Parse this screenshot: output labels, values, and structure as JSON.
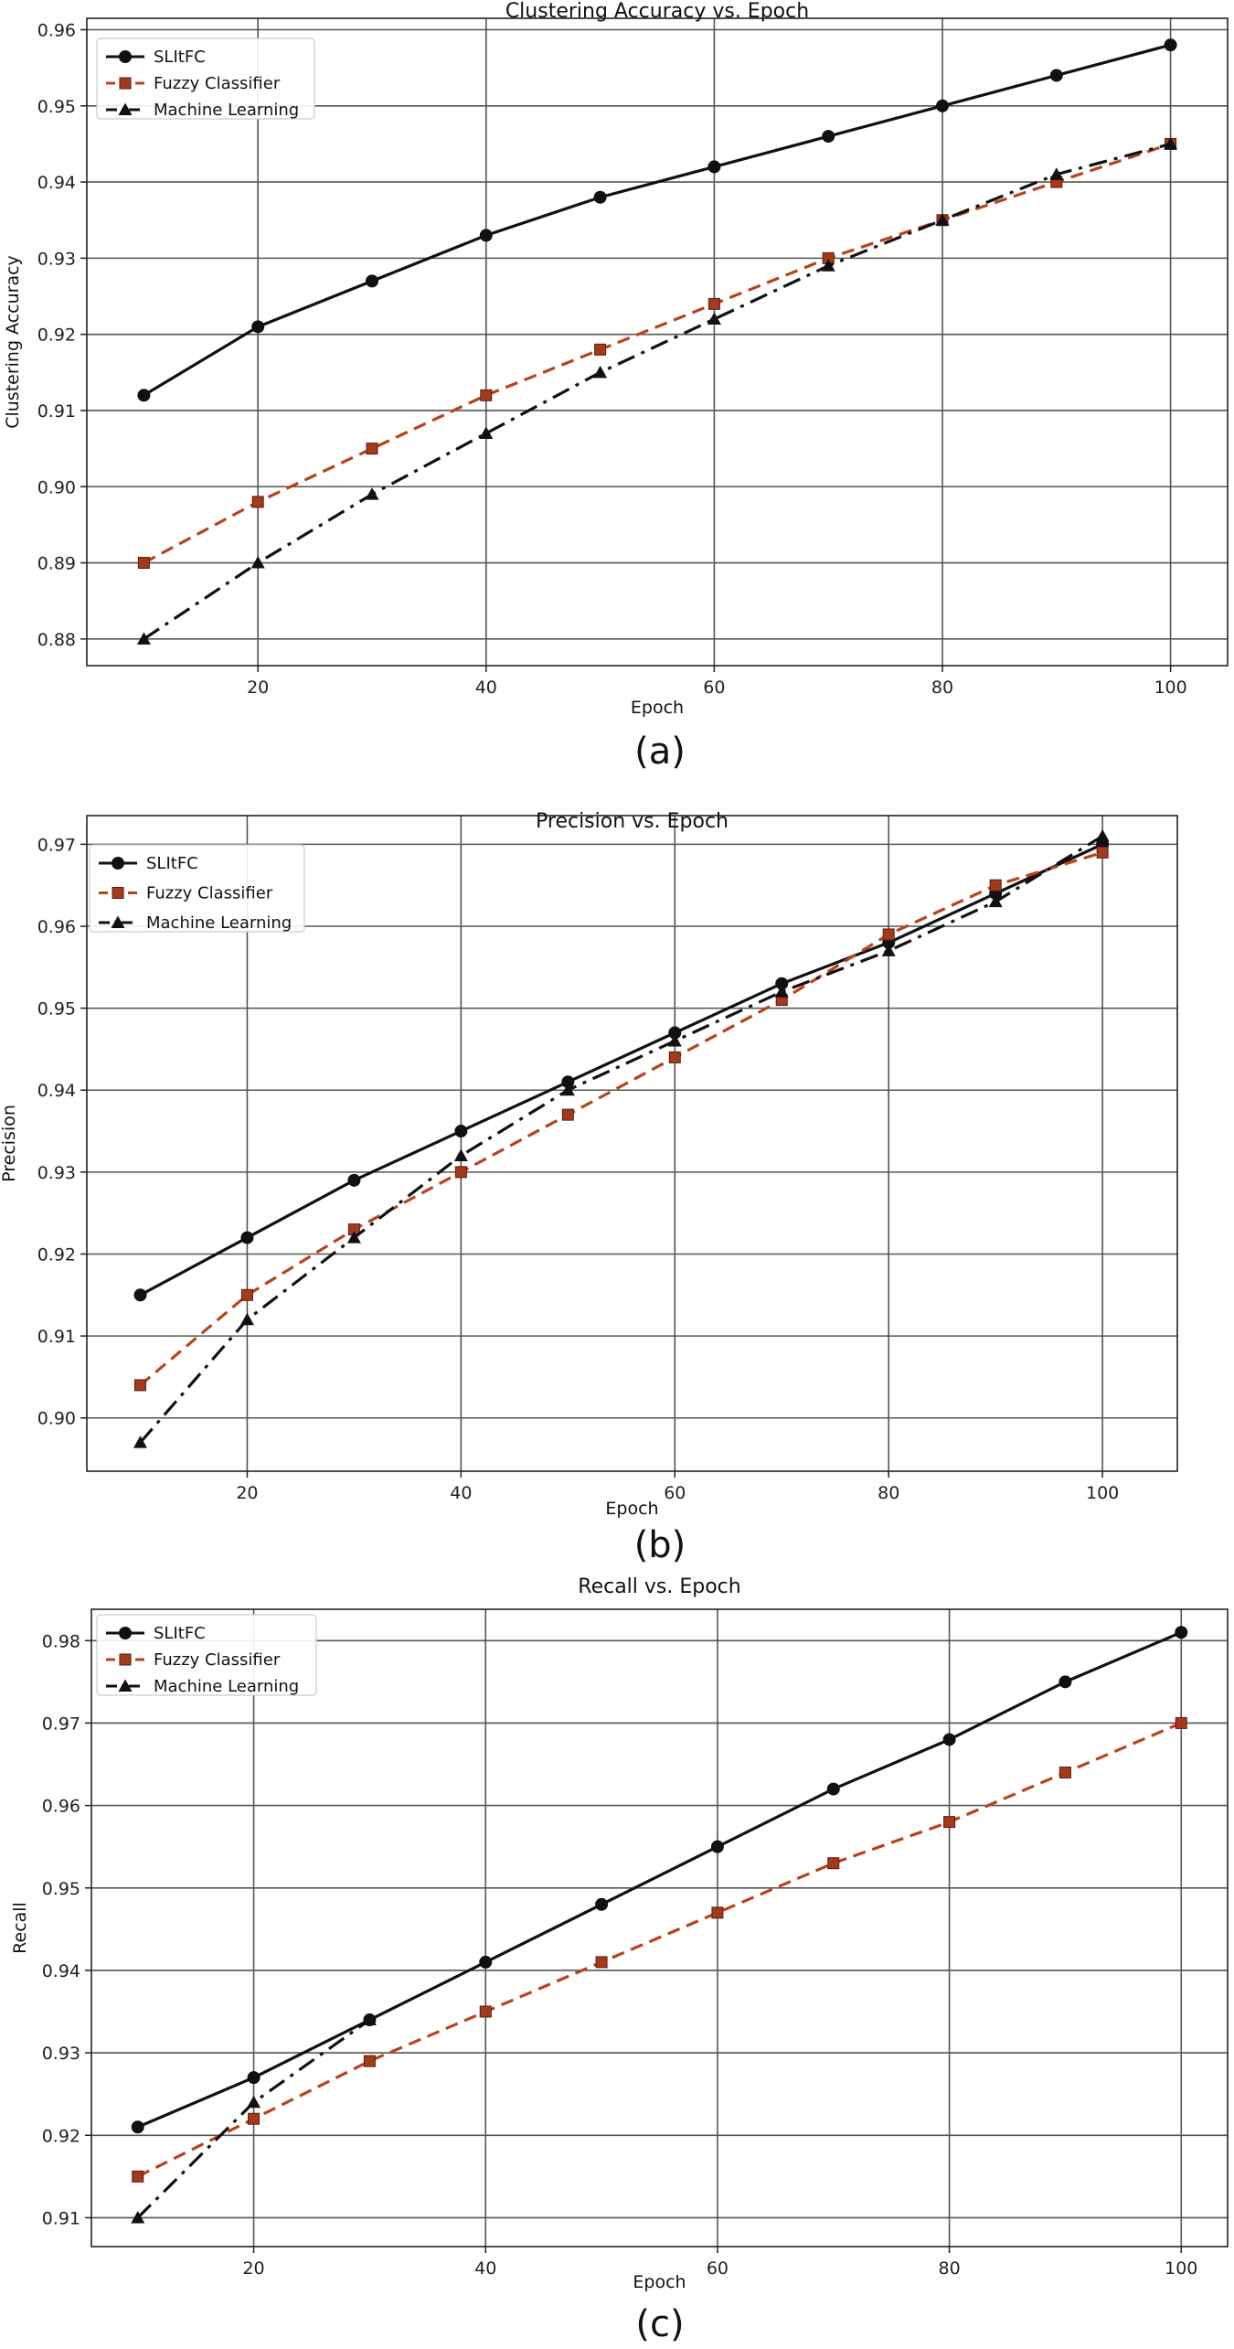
{
  "colors": {
    "SLItFC": "#111111",
    "FuzzyClassifier": "#b8431a",
    "FuzzyMarker": "#a33a1c",
    "MachineLearning": "#111111",
    "grid": "#555555"
  },
  "chart_data": [
    {
      "type": "line",
      "title": "Clustering Accuracy vs. Epoch",
      "xlabel": "Epoch",
      "ylabel": "Clustering Accuracy",
      "caption": "(a)",
      "x": [
        10,
        20,
        30,
        40,
        50,
        60,
        70,
        80,
        90,
        100
      ],
      "xlim": [
        5,
        105
      ],
      "ylim": [
        0.8765,
        0.9615
      ],
      "xticks": [
        20,
        40,
        60,
        80,
        100
      ],
      "yticks": [
        0.88,
        0.89,
        0.9,
        0.91,
        0.92,
        0.93,
        0.94,
        0.95,
        0.96
      ],
      "ytick_labels": [
        "0.88",
        "0.89",
        "0.90",
        "0.91",
        "0.92",
        "0.93",
        "0.94",
        "0.95",
        "0.96"
      ],
      "grid": true,
      "legend": "top-left",
      "series": [
        {
          "name": "SLItFC",
          "marker": "circle",
          "style": "solid",
          "values": [
            0.912,
            0.921,
            0.927,
            0.933,
            0.938,
            0.942,
            0.946,
            0.95,
            0.954,
            0.958
          ]
        },
        {
          "name": "Fuzzy Classifier",
          "marker": "square",
          "style": "dashed",
          "values": [
            0.89,
            0.898,
            0.905,
            0.912,
            0.918,
            0.924,
            0.93,
            0.935,
            0.94,
            0.945
          ]
        },
        {
          "name": "Machine Learning",
          "marker": "triangle",
          "style": "dashdot",
          "values": [
            0.88,
            0.89,
            0.899,
            0.907,
            0.915,
            0.922,
            0.929,
            0.935,
            0.941,
            0.945
          ]
        }
      ]
    },
    {
      "type": "line",
      "title": "Precision vs. Epoch",
      "xlabel": "Epoch",
      "ylabel": "Precision",
      "caption": "(b)",
      "x": [
        10,
        20,
        30,
        40,
        50,
        60,
        70,
        80,
        90,
        100
      ],
      "xlim": [
        5,
        107
      ],
      "ylim": [
        0.8935,
        0.9735
      ],
      "xticks": [
        20,
        40,
        60,
        80,
        100
      ],
      "yticks": [
        0.9,
        0.91,
        0.92,
        0.93,
        0.94,
        0.95,
        0.96,
        0.97
      ],
      "ytick_labels": [
        "0.90",
        "0.91",
        "0.92",
        "0.93",
        "0.94",
        "0.95",
        "0.96",
        "0.97"
      ],
      "grid": true,
      "legend": "top-left",
      "series": [
        {
          "name": "SLItFC",
          "marker": "circle",
          "style": "solid",
          "values": [
            0.915,
            0.922,
            0.929,
            0.935,
            0.941,
            0.947,
            0.953,
            0.958,
            0.964,
            0.97
          ]
        },
        {
          "name": "Fuzzy Classifier",
          "marker": "square",
          "style": "dashed",
          "values": [
            0.904,
            0.915,
            0.923,
            0.93,
            0.937,
            0.944,
            0.951,
            0.959,
            0.965,
            0.969
          ]
        },
        {
          "name": "Machine Learning",
          "marker": "triangle",
          "style": "dashdot",
          "values": [
            0.897,
            0.912,
            0.922,
            0.932,
            0.94,
            0.946,
            0.952,
            0.957,
            0.963,
            0.971
          ]
        }
      ]
    },
    {
      "type": "line",
      "title": "Recall vs. Epoch",
      "xlabel": "Epoch",
      "ylabel": "Recall",
      "caption": "(c)",
      "x": [
        10,
        20,
        30,
        40,
        50,
        60,
        70,
        80,
        90,
        100
      ],
      "xlim": [
        6,
        104
      ],
      "ylim": [
        0.9065,
        0.9838
      ],
      "xticks": [
        20,
        40,
        60,
        80,
        100
      ],
      "yticks": [
        0.91,
        0.92,
        0.93,
        0.94,
        0.95,
        0.96,
        0.97,
        0.98
      ],
      "ytick_labels": [
        "0.91",
        "0.92",
        "0.93",
        "0.94",
        "0.95",
        "0.96",
        "0.97",
        "0.98"
      ],
      "grid": true,
      "legend": "top-left",
      "series": [
        {
          "name": "SLItFC",
          "marker": "circle",
          "style": "solid",
          "values": [
            0.921,
            0.927,
            0.934,
            0.941,
            0.948,
            0.955,
            0.962,
            0.968,
            0.975,
            0.981
          ]
        },
        {
          "name": "Fuzzy Classifier",
          "marker": "square",
          "style": "dashed",
          "values": [
            0.915,
            0.922,
            0.929,
            0.935,
            0.941,
            0.947,
            0.953,
            0.958,
            0.964,
            0.97
          ]
        },
        {
          "name": "Machine Learning",
          "marker": "triangle",
          "style": "dashdot",
          "x": [
            10,
            20,
            30
          ],
          "values": [
            0.91,
            0.924,
            0.934
          ]
        }
      ]
    }
  ]
}
